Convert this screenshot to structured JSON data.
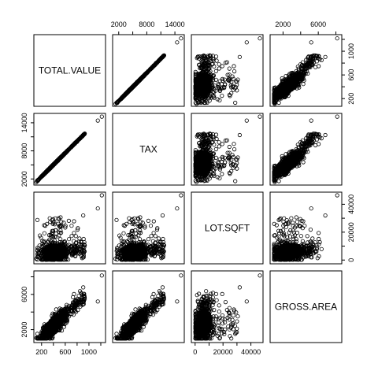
{
  "chart_data": {
    "type": "scatter",
    "kind": "scatterplot-matrix",
    "title": "",
    "variables": [
      {
        "name": "TOTAL.VALUE",
        "range": [
          110,
          1240
        ],
        "ticks": [
          200,
          600,
          1000
        ],
        "ticks_alt": [
          400,
          800,
          1200
        ]
      },
      {
        "name": "TAX",
        "range": [
          1200,
          15500
        ],
        "ticks": [
          2000,
          8000,
          14000
        ],
        "ticks_alt": [
          5000,
          11000
        ]
      },
      {
        "name": "LOT.SQFT",
        "range": [
          -1000,
          47000
        ],
        "ticks": [
          0,
          20000,
          40000
        ],
        "ticks_alt": [
          10000,
          30000
        ]
      },
      {
        "name": "GROSS.AREA",
        "range": [
          800,
          8400
        ],
        "ticks": [
          2000,
          6000
        ],
        "ticks_alt": [
          4000,
          8000
        ]
      }
    ],
    "axis_layout": {
      "top": [
        1,
        3
      ],
      "right": [
        0,
        2
      ],
      "bottom": [
        0,
        2
      ],
      "left": [
        1,
        3
      ]
    },
    "point_count": 900,
    "points_sample": [
      [
        344.2,
        4330,
        9965,
        2436
      ],
      [
        412.6,
        5190,
        6590,
        3108
      ],
      [
        330.1,
        4152,
        6000,
        2294
      ],
      [
        498.6,
        6272,
        6351,
        3818
      ],
      [
        331.5,
        4170,
        10000,
        2414
      ],
      [
        337.4,
        4244,
        5093,
        2094
      ],
      [
        359.4,
        4521,
        5200,
        2700
      ],
      [
        320.4,
        4030,
        10150,
        2554
      ],
      [
        333.5,
        4195,
        6012,
        2192
      ],
      [
        409.4,
        5150,
        8100,
        2468
      ],
      [
        1217.8,
        15319,
        46411,
        8154
      ],
      [
        1150.0,
        14470,
        37000,
        5200
      ],
      [
        904.0,
        11370,
        32000,
        6800
      ],
      [
        111.0,
        1320,
        1000,
        1050
      ]
    ],
    "grid": false,
    "legend": "none"
  }
}
